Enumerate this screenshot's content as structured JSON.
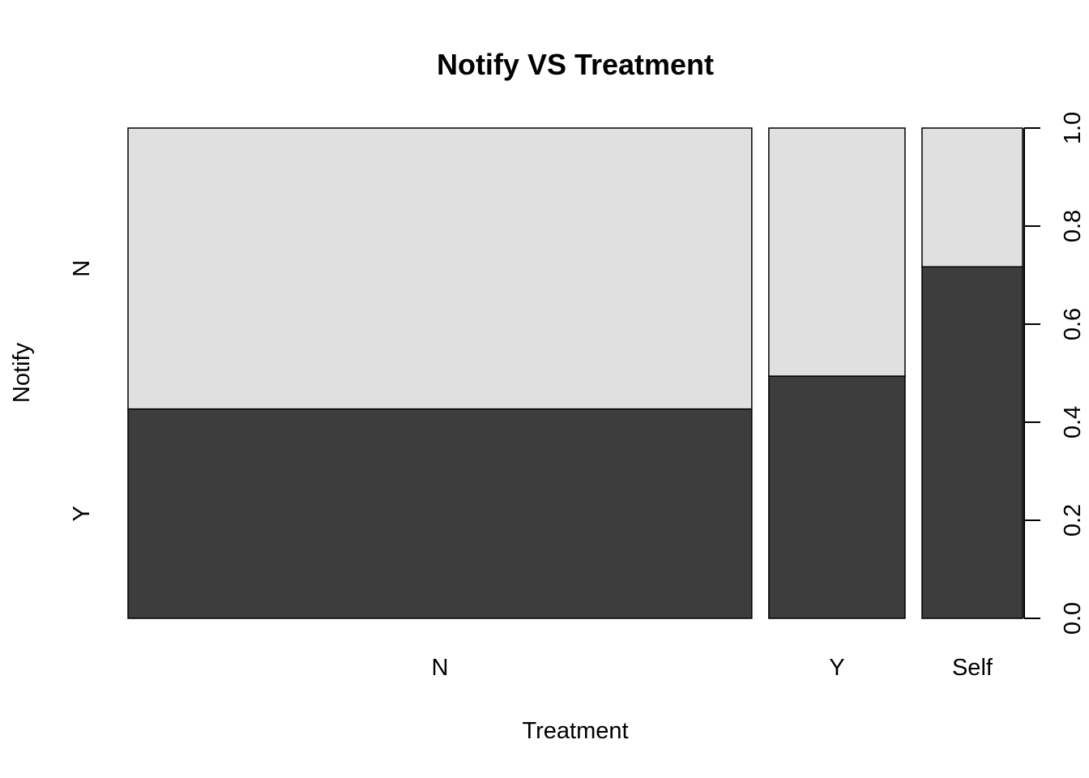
{
  "chart_data": {
    "type": "spineplot",
    "title": "Notify VS Treatment",
    "xlabel": "Treatment",
    "ylabel": "Notify",
    "categories": [
      "N",
      "Y",
      "Self"
    ],
    "category_widths": [
      0.664,
      0.145,
      0.107
    ],
    "levels": [
      "Y",
      "N"
    ],
    "series": [
      {
        "name": "Y",
        "values": [
          0.427,
          0.494,
          0.717
        ]
      },
      {
        "name": "N",
        "values": [
          0.573,
          0.506,
          0.283
        ]
      }
    ],
    "colors": {
      "Y": "#3d3d3d",
      "N": "#e0e0e0"
    },
    "y_axis": {
      "position": "right",
      "ticks": [
        "0.0",
        "0.2",
        "0.4",
        "0.6",
        "0.8",
        "1.0"
      ],
      "ylim": [
        0,
        1
      ]
    },
    "grid": false
  }
}
